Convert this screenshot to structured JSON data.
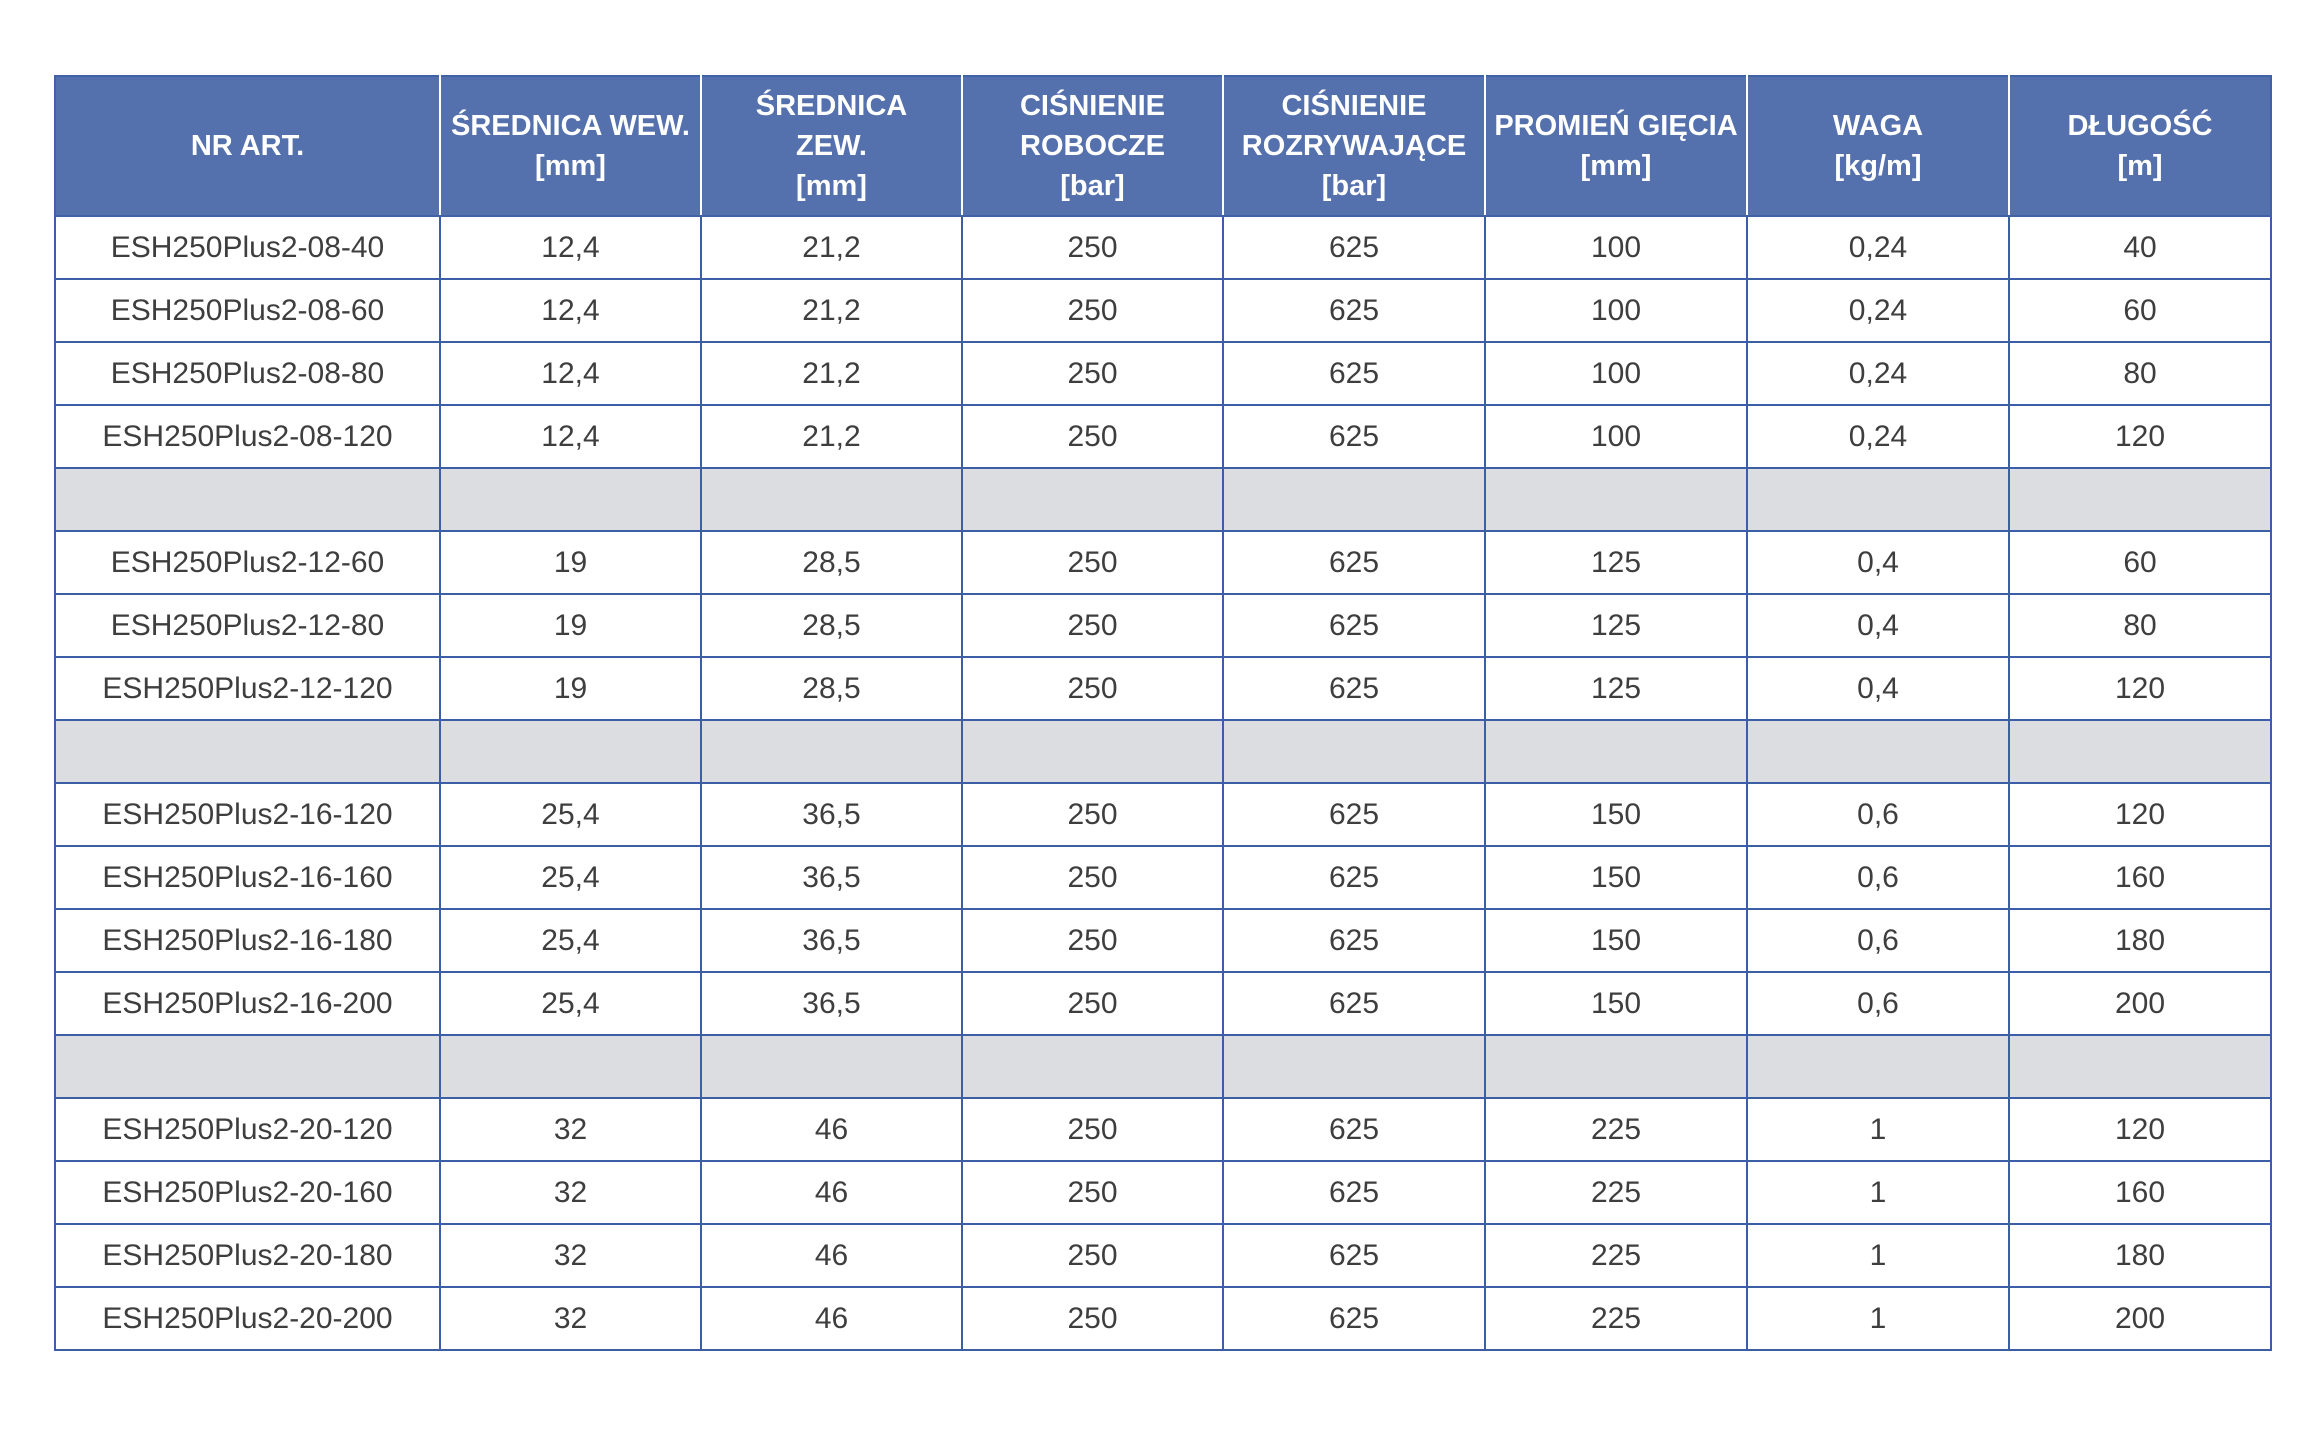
{
  "table": {
    "headers": [
      {
        "lines": [
          "NR ART."
        ]
      },
      {
        "lines": [
          "ŚREDNICA WEW.",
          "[mm]"
        ]
      },
      {
        "lines": [
          "ŚREDNICA",
          "ZEW.",
          "[mm]"
        ]
      },
      {
        "lines": [
          "CIŚNIENIE",
          "ROBOCZE",
          "[bar]"
        ]
      },
      {
        "lines": [
          "CIŚNIENIE",
          "ROZRYWAJĄCE",
          "[bar]"
        ]
      },
      {
        "lines": [
          "PROMIEŃ GIĘCIA",
          "[mm]"
        ]
      },
      {
        "lines": [
          "WAGA",
          "[kg/m]"
        ]
      },
      {
        "lines": [
          "DŁUGOŚĆ",
          "[m]"
        ]
      }
    ],
    "rows": [
      [
        "ESH250Plus2-08-40",
        "12,4",
        "21,2",
        "250",
        "625",
        "100",
        "0,24",
        "40"
      ],
      [
        "ESH250Plus2-08-60",
        "12,4",
        "21,2",
        "250",
        "625",
        "100",
        "0,24",
        "60"
      ],
      [
        "ESH250Plus2-08-80",
        "12,4",
        "21,2",
        "250",
        "625",
        "100",
        "0,24",
        "80"
      ],
      [
        "ESH250Plus2-08-120",
        "12,4",
        "21,2",
        "250",
        "625",
        "100",
        "0,24",
        "120"
      ],
      [],
      [
        "ESH250Plus2-12-60",
        "19",
        "28,5",
        "250",
        "625",
        "125",
        "0,4",
        "60"
      ],
      [
        "ESH250Plus2-12-80",
        "19",
        "28,5",
        "250",
        "625",
        "125",
        "0,4",
        "80"
      ],
      [
        "ESH250Plus2-12-120",
        "19",
        "28,5",
        "250",
        "625",
        "125",
        "0,4",
        "120"
      ],
      [],
      [
        "ESH250Plus2-16-120",
        "25,4",
        "36,5",
        "250",
        "625",
        "150",
        "0,6",
        "120"
      ],
      [
        "ESH250Plus2-16-160",
        "25,4",
        "36,5",
        "250",
        "625",
        "150",
        "0,6",
        "160"
      ],
      [
        "ESH250Plus2-16-180",
        "25,4",
        "36,5",
        "250",
        "625",
        "150",
        "0,6",
        "180"
      ],
      [
        "ESH250Plus2-16-200",
        "25,4",
        "36,5",
        "250",
        "625",
        "150",
        "0,6",
        "200"
      ],
      [],
      [
        "ESH250Plus2-20-120",
        "32",
        "46",
        "250",
        "625",
        "225",
        "1",
        "120"
      ],
      [
        "ESH250Plus2-20-160",
        "32",
        "46",
        "250",
        "625",
        "225",
        "1",
        "160"
      ],
      [
        "ESH250Plus2-20-180",
        "32",
        "46",
        "250",
        "625",
        "225",
        "1",
        "180"
      ],
      [
        "ESH250Plus2-20-200",
        "32",
        "46",
        "250",
        "625",
        "225",
        "1",
        "200"
      ]
    ]
  }
}
